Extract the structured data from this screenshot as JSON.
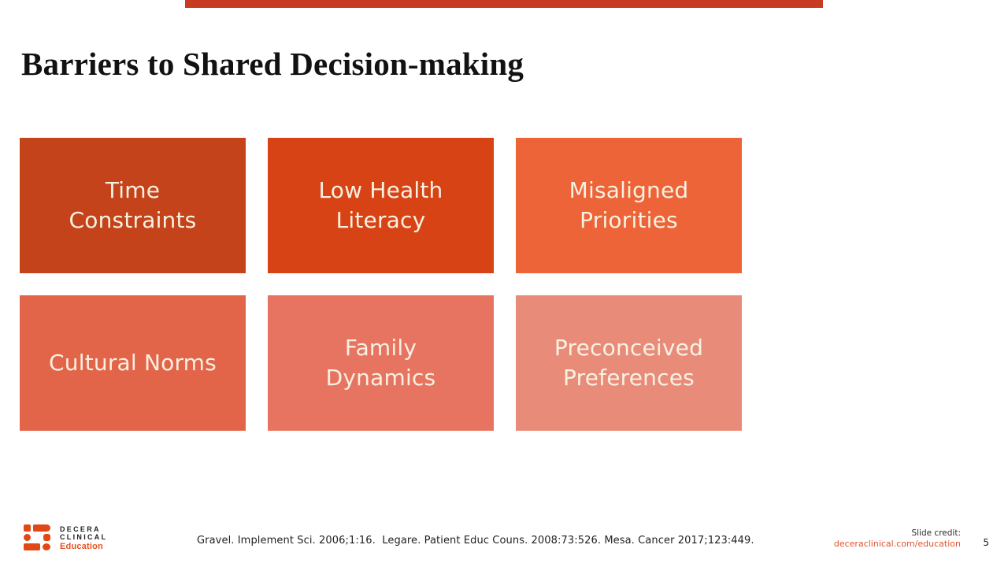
{
  "slide": {
    "title": "Barriers to Shared Decision-making",
    "page_number": "5"
  },
  "accent": {
    "top_bar_color": "#c63b21",
    "box_text_color": "#f8f1e2",
    "logo_orange": "#e04817",
    "link_orange": "#e2512b"
  },
  "barriers": [
    {
      "label": "Time Constraints",
      "lines": [
        "Time",
        "Constraints"
      ],
      "color": "#c4431a"
    },
    {
      "label": "Low Health Literacy",
      "lines": [
        "Low Health",
        "Literacy"
      ],
      "color": "#d84315"
    },
    {
      "label": "Misaligned Priorities",
      "lines": [
        "Misaligned",
        "Priorities"
      ],
      "color": "#ec6437"
    },
    {
      "label": "Cultural Norms",
      "lines": [
        "Cultural Norms"
      ],
      "color": "#e2654a"
    },
    {
      "label": "Family Dynamics",
      "lines": [
        "Family",
        "Dynamics"
      ],
      "color": "#e77460"
    },
    {
      "label": "Preconceived Preferences",
      "lines": [
        "Preconceived",
        "Preferences"
      ],
      "color": "#e98b79"
    }
  ],
  "footer": {
    "citation": "Gravel. Implement Sci. 2006;1:16.  Legare. Patient Educ Couns. 2008:73:526. Mesa. Cancer 2017;123:449.",
    "slide_credit_label": "Slide credit:",
    "slide_credit_url": "deceraclinical.com/education",
    "logo": {
      "name_line1": "DECERA",
      "name_line2": "CLINICAL",
      "subbrand": "Education"
    }
  }
}
